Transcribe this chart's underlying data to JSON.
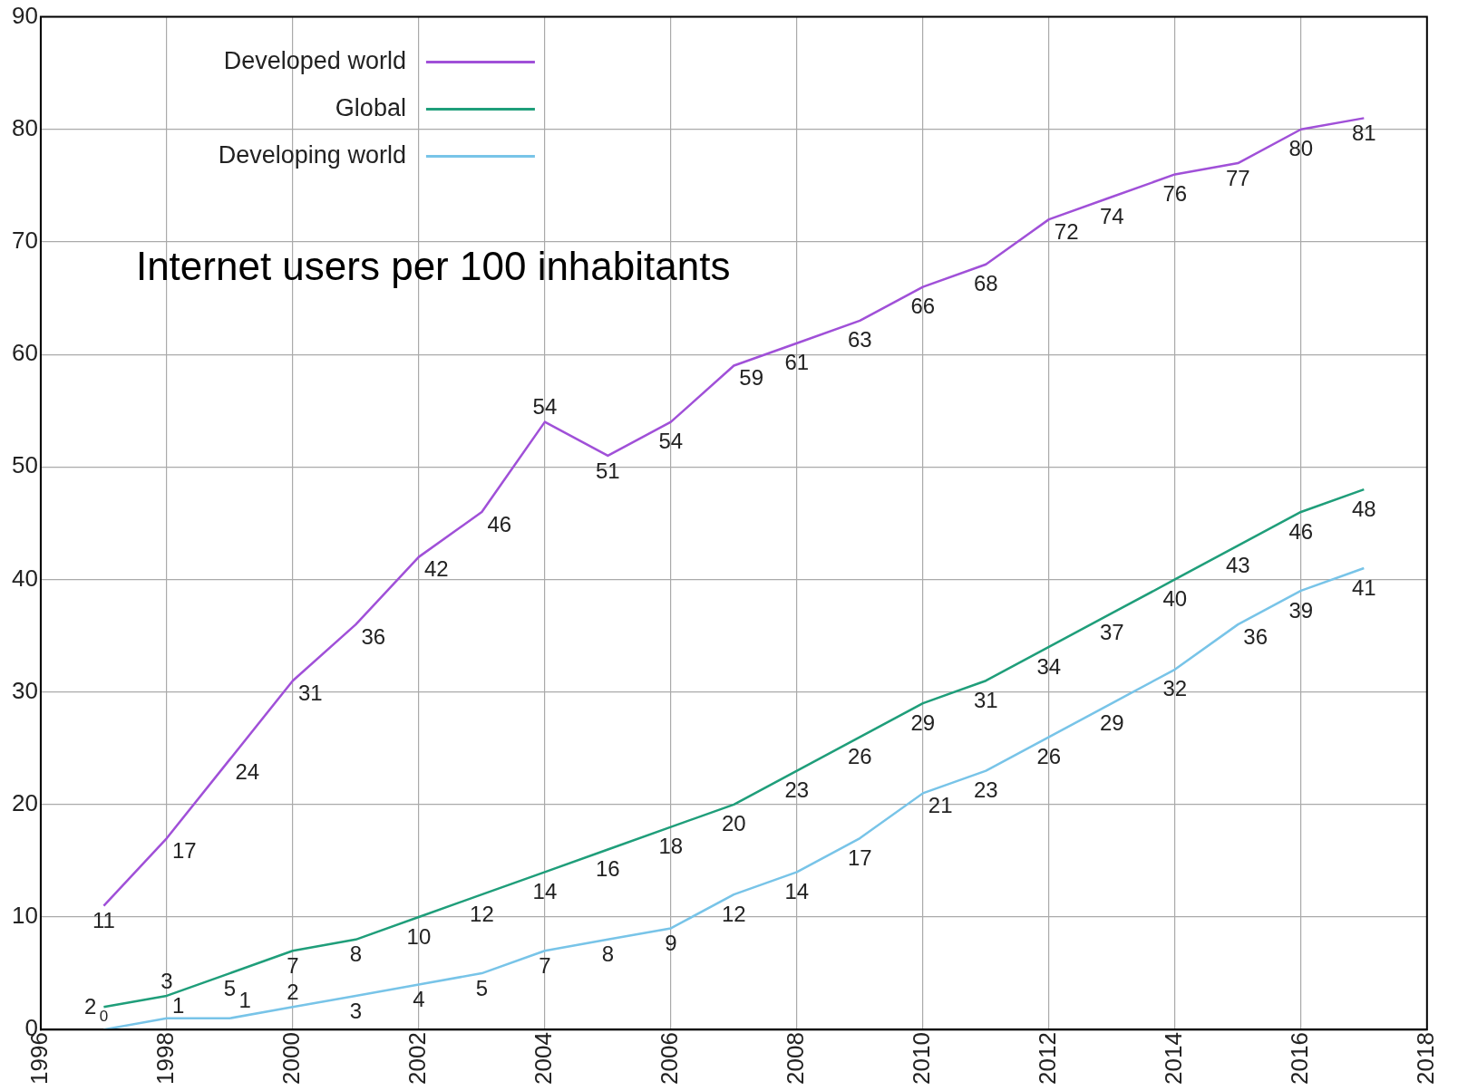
{
  "chart_data": {
    "type": "line",
    "title": "Internet users per 100 inhabitants",
    "x": [
      1997,
      1998,
      1999,
      2000,
      2001,
      2002,
      2003,
      2004,
      2005,
      2006,
      2007,
      2008,
      2009,
      2010,
      2011,
      2012,
      2013,
      2014,
      2015,
      2016,
      2017
    ],
    "series": [
      {
        "name": "Developed world",
        "color": "#a050d8",
        "values": [
          11,
          17,
          24,
          31,
          36,
          42,
          46,
          54,
          51,
          54,
          59,
          61,
          63,
          66,
          68,
          72,
          74,
          76,
          77,
          80,
          81
        ]
      },
      {
        "name": "Global",
        "color": "#1f9e7a",
        "values": [
          2,
          3,
          5,
          7,
          8,
          10,
          12,
          14,
          16,
          18,
          20,
          23,
          26,
          29,
          31,
          34,
          37,
          40,
          43,
          46,
          48
        ]
      },
      {
        "name": "Developing world",
        "color": "#78c4e8",
        "values": [
          0,
          1,
          1,
          2,
          3,
          4,
          5,
          7,
          8,
          9,
          12,
          14,
          17,
          21,
          23,
          26,
          29,
          32,
          36,
          39,
          41
        ]
      }
    ],
    "xlim": [
      1996,
      2018
    ],
    "xticks": [
      1996,
      1998,
      2000,
      2002,
      2004,
      2006,
      2008,
      2010,
      2012,
      2014,
      2016,
      2018
    ],
    "ylim": [
      0,
      90
    ],
    "yticks": [
      0,
      10,
      20,
      30,
      40,
      50,
      60,
      70,
      80,
      90
    ],
    "grid": true,
    "legend": "top left",
    "marker": "none",
    "line_style": "solid",
    "data_labels": true
  }
}
